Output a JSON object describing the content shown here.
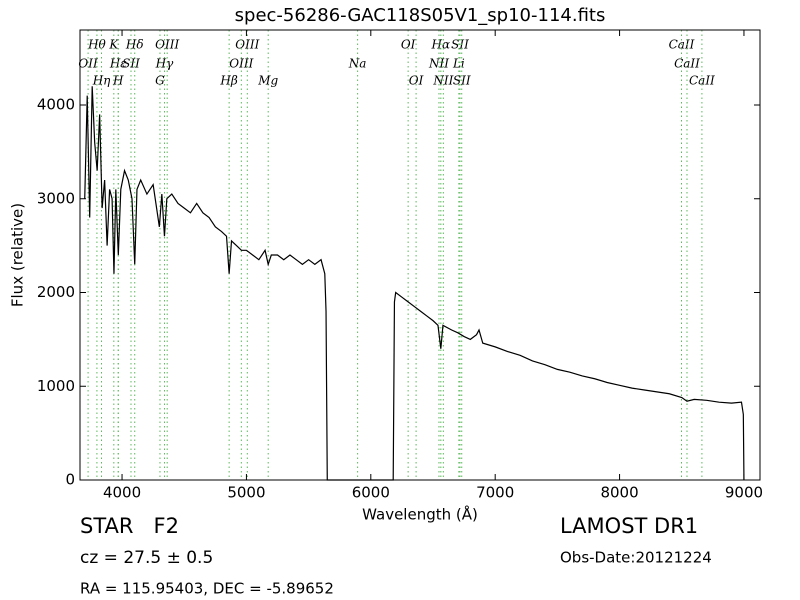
{
  "chart_data": {
    "type": "line",
    "title": "spec-56286-GAC118S05V1_sp10-114.fits",
    "xlabel": "Wavelength (Å)",
    "ylabel": "Flux (relative)",
    "xlim": [
      3662,
      9129
    ],
    "ylim": [
      0,
      4800
    ],
    "xticks": [
      4000,
      5000,
      6000,
      7000,
      8000,
      9000
    ],
    "yticks": [
      0,
      1000,
      2000,
      3000,
      4000
    ],
    "color": "#000000",
    "line_color": "#5cb85c",
    "x": [
      3700,
      3720,
      3740,
      3760,
      3780,
      3800,
      3820,
      3840,
      3860,
      3880,
      3900,
      3920,
      3935,
      3950,
      3970,
      3990,
      4020,
      4050,
      4080,
      4102,
      4120,
      4150,
      4200,
      4250,
      4300,
      4320,
      4341,
      4360,
      4400,
      4450,
      4500,
      4550,
      4600,
      4650,
      4700,
      4750,
      4800,
      4840,
      4861,
      4880,
      4920,
      4960,
      5000,
      5050,
      5100,
      5150,
      5175,
      5200,
      5250,
      5300,
      5350,
      5400,
      5450,
      5500,
      5550,
      5600,
      5630,
      5640,
      5650,
      6180,
      6190,
      6200,
      6250,
      6300,
      6350,
      6400,
      6450,
      6500,
      6540,
      6563,
      6580,
      6650,
      6700,
      6750,
      6800,
      6850,
      6870,
      6900,
      7000,
      7100,
      7200,
      7300,
      7400,
      7500,
      7600,
      7700,
      7800,
      7900,
      8000,
      8100,
      8200,
      8300,
      8400,
      8500,
      8542,
      8600,
      8700,
      8800,
      8900,
      8980,
      8995,
      9000
    ],
    "values": [
      3000,
      4100,
      2800,
      4200,
      3600,
      3300,
      3900,
      2900,
      3200,
      2500,
      3100,
      3000,
      2200,
      3100,
      2400,
      3100,
      3300,
      3200,
      3000,
      2300,
      3100,
      3200,
      3050,
      3150,
      2700,
      3050,
      2600,
      3000,
      3050,
      2950,
      2900,
      2850,
      2950,
      2850,
      2800,
      2700,
      2650,
      2600,
      2200,
      2550,
      2500,
      2450,
      2450,
      2400,
      2350,
      2450,
      2300,
      2400,
      2400,
      2350,
      2400,
      2350,
      2300,
      2350,
      2300,
      2350,
      2200,
      1800,
      0,
      0,
      1900,
      2000,
      1950,
      1900,
      1850,
      1800,
      1750,
      1700,
      1650,
      1400,
      1650,
      1600,
      1570,
      1530,
      1500,
      1550,
      1600,
      1460,
      1420,
      1370,
      1330,
      1270,
      1230,
      1180,
      1150,
      1110,
      1080,
      1040,
      1010,
      980,
      960,
      940,
      920,
      880,
      840,
      860,
      850,
      830,
      820,
      830,
      700,
      0
    ],
    "lines": [
      {
        "label": "Hθ",
        "x": 3798
      },
      {
        "label": "K",
        "x": 3934
      },
      {
        "label": "Hδ",
        "x": 4102
      },
      {
        "label": "OIII",
        "x": 4363
      },
      {
        "label": "OIII",
        "x": 5007
      },
      {
        "label": "OI",
        "x": 6300
      },
      {
        "label": "Hα",
        "x": 6563
      },
      {
        "label": "SII",
        "x": 6717
      },
      {
        "label": "CaII",
        "x": 8498
      },
      {
        "label": "OII",
        "x": 3727
      },
      {
        "label": "Hε",
        "x": 3970
      },
      {
        "label": "SII",
        "x": 4072
      },
      {
        "label": "Hγ",
        "x": 4341
      },
      {
        "label": "OIII",
        "x": 4959
      },
      {
        "label": "Na",
        "x": 5894
      },
      {
        "label": "NII",
        "x": 6548
      },
      {
        "label": "Li",
        "x": 6708
      },
      {
        "label": "CaII",
        "x": 8542
      },
      {
        "label": "Hη",
        "x": 3835
      },
      {
        "label": "H",
        "x": 3969
      },
      {
        "label": "G",
        "x": 4305
      },
      {
        "label": "Hβ",
        "x": 4861
      },
      {
        "label": "Mg",
        "x": 5175
      },
      {
        "label": "OI",
        "x": 6364
      },
      {
        "label": "NII",
        "x": 6583
      },
      {
        "label": "SII",
        "x": 6731
      },
      {
        "label": "CaII",
        "x": 8662
      }
    ],
    "annotations": {
      "class": "STAR   F2",
      "cz": "cz = 27.5 ± 0.5",
      "coords": "RA = 115.95403, DEC = -5.89652",
      "survey": "LAMOST DR1",
      "date": "Obs-Date:20121224"
    }
  }
}
